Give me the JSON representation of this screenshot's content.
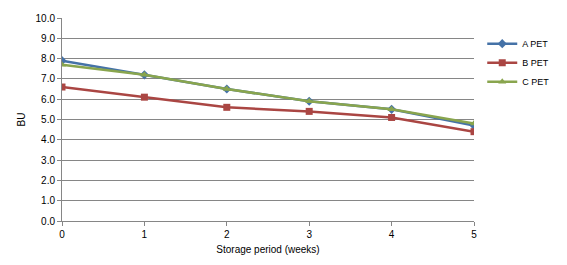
{
  "chart_data": {
    "type": "line",
    "x_label": "Storage period (weeks)",
    "y_label": "BU",
    "x": [
      0,
      1,
      2,
      3,
      4,
      5
    ],
    "series": [
      {
        "name": "A PET",
        "color": "#4572a7",
        "marker": "diamond",
        "values": [
          7.9,
          7.2,
          6.5,
          5.9,
          5.5,
          4.7
        ]
      },
      {
        "name": "B PET",
        "color": "#aa4643",
        "marker": "square",
        "values": [
          6.6,
          6.1,
          5.6,
          5.4,
          5.1,
          4.4
        ]
      },
      {
        "name": "C PET",
        "color": "#89a54e",
        "marker": "triangle",
        "values": [
          7.7,
          7.2,
          6.5,
          5.9,
          5.5,
          4.8
        ]
      }
    ],
    "xlim": [
      0,
      5
    ],
    "xticks": [
      0,
      1,
      2,
      3,
      4,
      5
    ],
    "ylim": [
      0,
      10
    ],
    "yticks": [
      {
        "value": 0,
        "label": "0.0"
      },
      {
        "value": 1,
        "label": "1.0"
      },
      {
        "value": 2,
        "label": "2.0"
      },
      {
        "value": 3,
        "label": "3.0"
      },
      {
        "value": 4,
        "label": "4.0"
      },
      {
        "value": 5,
        "label": "5.0"
      },
      {
        "value": 6,
        "label": "6.0"
      },
      {
        "value": 7,
        "label": "7.0"
      },
      {
        "value": 8,
        "label": "8.0"
      },
      {
        "value": 9,
        "label": "9.0"
      },
      {
        "value": 10,
        "label": "10.0"
      }
    ],
    "grid": true,
    "legend": "right"
  }
}
